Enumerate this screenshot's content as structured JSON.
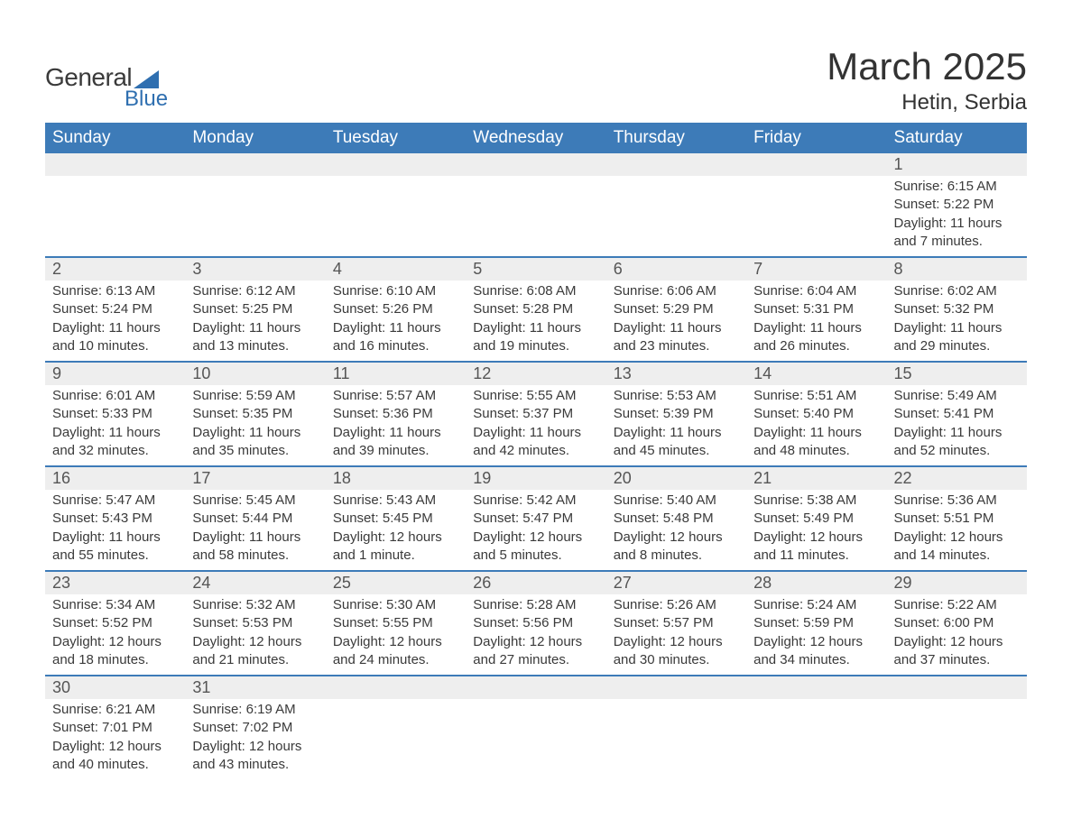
{
  "logo": {
    "text1": "General",
    "text2": "Blue"
  },
  "title": "March 2025",
  "location": "Hetin, Serbia",
  "colors": {
    "header_bg": "#3d7bb8",
    "header_text": "#ffffff",
    "daynum_bg": "#eeeeee",
    "border": "#3d7bb8",
    "text": "#3a3a3a",
    "logo_blue": "#2f6fb0"
  },
  "weekdays": [
    "Sunday",
    "Monday",
    "Tuesday",
    "Wednesday",
    "Thursday",
    "Friday",
    "Saturday"
  ],
  "weeks": [
    [
      null,
      null,
      null,
      null,
      null,
      null,
      {
        "n": "1",
        "sr": "Sunrise: 6:15 AM",
        "ss": "Sunset: 5:22 PM",
        "dl": "Daylight: 11 hours and 7 minutes."
      }
    ],
    [
      {
        "n": "2",
        "sr": "Sunrise: 6:13 AM",
        "ss": "Sunset: 5:24 PM",
        "dl": "Daylight: 11 hours and 10 minutes."
      },
      {
        "n": "3",
        "sr": "Sunrise: 6:12 AM",
        "ss": "Sunset: 5:25 PM",
        "dl": "Daylight: 11 hours and 13 minutes."
      },
      {
        "n": "4",
        "sr": "Sunrise: 6:10 AM",
        "ss": "Sunset: 5:26 PM",
        "dl": "Daylight: 11 hours and 16 minutes."
      },
      {
        "n": "5",
        "sr": "Sunrise: 6:08 AM",
        "ss": "Sunset: 5:28 PM",
        "dl": "Daylight: 11 hours and 19 minutes."
      },
      {
        "n": "6",
        "sr": "Sunrise: 6:06 AM",
        "ss": "Sunset: 5:29 PM",
        "dl": "Daylight: 11 hours and 23 minutes."
      },
      {
        "n": "7",
        "sr": "Sunrise: 6:04 AM",
        "ss": "Sunset: 5:31 PM",
        "dl": "Daylight: 11 hours and 26 minutes."
      },
      {
        "n": "8",
        "sr": "Sunrise: 6:02 AM",
        "ss": "Sunset: 5:32 PM",
        "dl": "Daylight: 11 hours and 29 minutes."
      }
    ],
    [
      {
        "n": "9",
        "sr": "Sunrise: 6:01 AM",
        "ss": "Sunset: 5:33 PM",
        "dl": "Daylight: 11 hours and 32 minutes."
      },
      {
        "n": "10",
        "sr": "Sunrise: 5:59 AM",
        "ss": "Sunset: 5:35 PM",
        "dl": "Daylight: 11 hours and 35 minutes."
      },
      {
        "n": "11",
        "sr": "Sunrise: 5:57 AM",
        "ss": "Sunset: 5:36 PM",
        "dl": "Daylight: 11 hours and 39 minutes."
      },
      {
        "n": "12",
        "sr": "Sunrise: 5:55 AM",
        "ss": "Sunset: 5:37 PM",
        "dl": "Daylight: 11 hours and 42 minutes."
      },
      {
        "n": "13",
        "sr": "Sunrise: 5:53 AM",
        "ss": "Sunset: 5:39 PM",
        "dl": "Daylight: 11 hours and 45 minutes."
      },
      {
        "n": "14",
        "sr": "Sunrise: 5:51 AM",
        "ss": "Sunset: 5:40 PM",
        "dl": "Daylight: 11 hours and 48 minutes."
      },
      {
        "n": "15",
        "sr": "Sunrise: 5:49 AM",
        "ss": "Sunset: 5:41 PM",
        "dl": "Daylight: 11 hours and 52 minutes."
      }
    ],
    [
      {
        "n": "16",
        "sr": "Sunrise: 5:47 AM",
        "ss": "Sunset: 5:43 PM",
        "dl": "Daylight: 11 hours and 55 minutes."
      },
      {
        "n": "17",
        "sr": "Sunrise: 5:45 AM",
        "ss": "Sunset: 5:44 PM",
        "dl": "Daylight: 11 hours and 58 minutes."
      },
      {
        "n": "18",
        "sr": "Sunrise: 5:43 AM",
        "ss": "Sunset: 5:45 PM",
        "dl": "Daylight: 12 hours and 1 minute."
      },
      {
        "n": "19",
        "sr": "Sunrise: 5:42 AM",
        "ss": "Sunset: 5:47 PM",
        "dl": "Daylight: 12 hours and 5 minutes."
      },
      {
        "n": "20",
        "sr": "Sunrise: 5:40 AM",
        "ss": "Sunset: 5:48 PM",
        "dl": "Daylight: 12 hours and 8 minutes."
      },
      {
        "n": "21",
        "sr": "Sunrise: 5:38 AM",
        "ss": "Sunset: 5:49 PM",
        "dl": "Daylight: 12 hours and 11 minutes."
      },
      {
        "n": "22",
        "sr": "Sunrise: 5:36 AM",
        "ss": "Sunset: 5:51 PM",
        "dl": "Daylight: 12 hours and 14 minutes."
      }
    ],
    [
      {
        "n": "23",
        "sr": "Sunrise: 5:34 AM",
        "ss": "Sunset: 5:52 PM",
        "dl": "Daylight: 12 hours and 18 minutes."
      },
      {
        "n": "24",
        "sr": "Sunrise: 5:32 AM",
        "ss": "Sunset: 5:53 PM",
        "dl": "Daylight: 12 hours and 21 minutes."
      },
      {
        "n": "25",
        "sr": "Sunrise: 5:30 AM",
        "ss": "Sunset: 5:55 PM",
        "dl": "Daylight: 12 hours and 24 minutes."
      },
      {
        "n": "26",
        "sr": "Sunrise: 5:28 AM",
        "ss": "Sunset: 5:56 PM",
        "dl": "Daylight: 12 hours and 27 minutes."
      },
      {
        "n": "27",
        "sr": "Sunrise: 5:26 AM",
        "ss": "Sunset: 5:57 PM",
        "dl": "Daylight: 12 hours and 30 minutes."
      },
      {
        "n": "28",
        "sr": "Sunrise: 5:24 AM",
        "ss": "Sunset: 5:59 PM",
        "dl": "Daylight: 12 hours and 34 minutes."
      },
      {
        "n": "29",
        "sr": "Sunrise: 5:22 AM",
        "ss": "Sunset: 6:00 PM",
        "dl": "Daylight: 12 hours and 37 minutes."
      }
    ],
    [
      {
        "n": "30",
        "sr": "Sunrise: 6:21 AM",
        "ss": "Sunset: 7:01 PM",
        "dl": "Daylight: 12 hours and 40 minutes."
      },
      {
        "n": "31",
        "sr": "Sunrise: 6:19 AM",
        "ss": "Sunset: 7:02 PM",
        "dl": "Daylight: 12 hours and 43 minutes."
      },
      null,
      null,
      null,
      null,
      null
    ]
  ]
}
